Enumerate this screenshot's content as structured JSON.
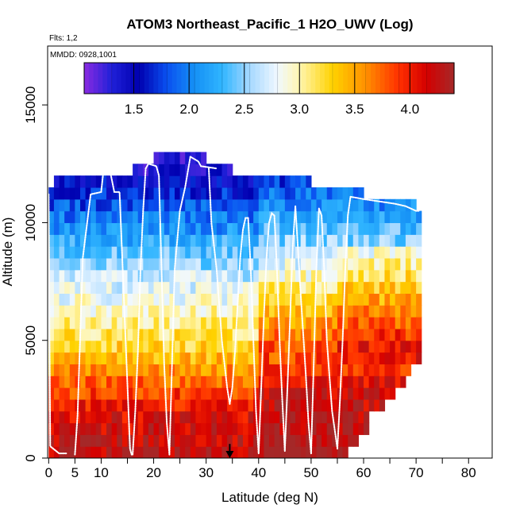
{
  "chart_data": {
    "type": "heatmap",
    "title": "ATOM3 Northeast_Pacific_1 H2O_UWV (Log)",
    "flights_label": "Flts: 1,2",
    "dates_label": "MMDD: 0928,1001",
    "xlabel": "Latitude (deg N)",
    "ylabel": "Altitude (m)",
    "xlim": [
      -0.2,
      84.5
    ],
    "ylim": [
      0,
      17500
    ],
    "x_ticks": [
      0,
      5,
      10,
      20,
      30,
      40,
      50,
      60,
      70,
      80
    ],
    "y_ticks": [
      0,
      5000,
      10000,
      15000
    ],
    "colorbar": {
      "range": [
        1.05,
        4.4
      ],
      "ticks": [
        1.5,
        2.0,
        2.5,
        3.0,
        3.5,
        4.0
      ],
      "tick_labels": [
        "1.5",
        "2.0",
        "2.5",
        "3.0",
        "3.5",
        "4.0"
      ],
      "color_stops": [
        {
          "v": 1.05,
          "c": "#8a2be2"
        },
        {
          "v": 1.3,
          "c": "#2020d8"
        },
        {
          "v": 1.55,
          "c": "#0000b0"
        },
        {
          "v": 1.8,
          "c": "#0a50f0"
        },
        {
          "v": 2.05,
          "c": "#1590f5"
        },
        {
          "v": 2.3,
          "c": "#30b5ff"
        },
        {
          "v": 2.55,
          "c": "#a5d8ff"
        },
        {
          "v": 2.8,
          "c": "#f0f8ff"
        },
        {
          "v": 3.0,
          "c": "#fff6b0"
        },
        {
          "v": 3.3,
          "c": "#ffd200"
        },
        {
          "v": 3.6,
          "c": "#ff9000"
        },
        {
          "v": 3.9,
          "c": "#ff3000"
        },
        {
          "v": 4.15,
          "c": "#d40000"
        },
        {
          "v": 4.4,
          "c": "#a52828"
        }
      ]
    },
    "sample_profiles": [
      {
        "lat": [
          0.0,
          0.3,
          2.0,
          3.5
        ],
        "alt": [
          11200,
          500,
          200,
          200
        ]
      },
      {
        "lat": [
          5.0,
          5.5,
          6.5,
          8.0,
          10.0,
          10.5,
          11.5,
          12.5,
          13.5,
          15.5,
          15.8
        ],
        "alt": [
          150,
          1800,
          8500,
          11200,
          11300,
          12300,
          12400,
          11300,
          11300,
          400,
          150
        ]
      },
      {
        "lat": [
          16.0,
          16.5,
          17.0,
          17.5,
          18.0,
          18.5
        ],
        "alt": [
          150,
          2000,
          4500,
          8000,
          10500,
          12300
        ]
      },
      {
        "lat": [
          18.5,
          19.0,
          20.5,
          21.0,
          21.5,
          22.0,
          22.5,
          23.0
        ],
        "alt": [
          12300,
          12500,
          12400,
          12000,
          8000,
          4000,
          1500,
          150
        ]
      },
      {
        "lat": [
          23.0,
          23.5,
          24.0,
          25.0,
          26.0,
          27.0
        ],
        "alt": [
          150,
          4000,
          8000,
          10500,
          11500,
          12800
        ]
      },
      {
        "lat": [
          27.0,
          28.5,
          29.0,
          32.0
        ],
        "alt": [
          12800,
          12600,
          12400,
          12300
        ]
      },
      {
        "lat": [
          30.5,
          31.0,
          32.0,
          33.0,
          34.0,
          34.5
        ],
        "alt": [
          12300,
          10000,
          8000,
          5000,
          3000,
          2300
        ]
      },
      {
        "lat": [
          34.5,
          35.0,
          35.5,
          36.0,
          36.5,
          37.0,
          37.5,
          38.0
        ],
        "alt": [
          2300,
          3000,
          4500,
          6500,
          8500,
          9700,
          10200,
          10200
        ]
      },
      {
        "lat": [
          38.0,
          38.5,
          39.0,
          39.5,
          40.0
        ],
        "alt": [
          10200,
          8000,
          5000,
          2000,
          200
        ]
      },
      {
        "lat": [
          40.0,
          40.5,
          41.0,
          41.5,
          42.0,
          42.5,
          43.0
        ],
        "alt": [
          200,
          3000,
          6000,
          8500,
          10000,
          10400,
          10300
        ]
      },
      {
        "lat": [
          43.0,
          43.5,
          44.0,
          44.5,
          45.0
        ],
        "alt": [
          10300,
          8000,
          5000,
          2500,
          300
        ]
      },
      {
        "lat": [
          45.0,
          45.5,
          46.0,
          46.5,
          47.0
        ],
        "alt": [
          300,
          3000,
          6000,
          9000,
          10700
        ]
      },
      {
        "lat": [
          47.0,
          48.0,
          49.0,
          49.5,
          50.0
        ],
        "alt": [
          10700,
          7000,
          3500,
          1500,
          200
        ]
      },
      {
        "lat": [
          50.0,
          50.5,
          51.0,
          51.5
        ],
        "alt": [
          200,
          4000,
          8000,
          10600
        ]
      },
      {
        "lat": [
          51.5,
          52.0,
          52.5,
          53.0,
          54.0,
          55.0
        ],
        "alt": [
          10600,
          10300,
          8000,
          5000,
          2000,
          400
        ]
      },
      {
        "lat": [
          55.0,
          55.5,
          56.0,
          56.5,
          57.0,
          57.5
        ],
        "alt": [
          400,
          2500,
          5000,
          8000,
          10300,
          11100
        ]
      },
      {
        "lat": [
          57.5,
          60.0,
          63.0,
          66.0,
          68.0,
          70.0,
          70.5
        ],
        "alt": [
          11100,
          11000,
          10900,
          10800,
          10700,
          10500,
          10500
        ]
      }
    ],
    "marker_arrow": {
      "lat": 34.5,
      "alt_from": 600,
      "alt_to": 0
    },
    "value_grid": {
      "lat_bin_deg": 1.0,
      "alt_bin_m": 500,
      "description": "log10 water vapor mixing ratio; ~3.9-4.4 below 2 km, decreasing to ~1.3 near 12 km"
    }
  }
}
